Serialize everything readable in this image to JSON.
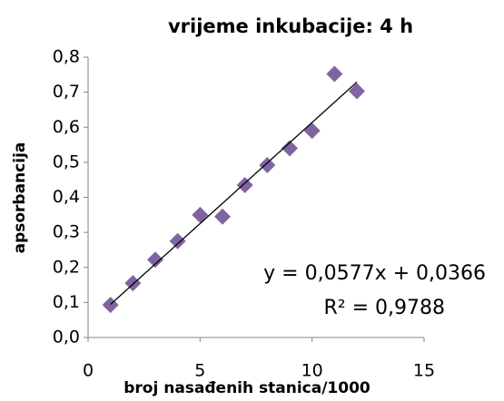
{
  "chart_data": {
    "type": "scatter",
    "title": "vrijeme inkubacije: 4 h",
    "x_label": "broj nasađenih stanica/1000",
    "y_label": "apsorbancija",
    "series": [
      {
        "name": "apsorbancija",
        "color": "#8064a2",
        "x": [
          1,
          2,
          3,
          4,
          5,
          6,
          7,
          8,
          9,
          10,
          11,
          12
        ],
        "values": [
          0.093,
          0.155,
          0.222,
          0.275,
          0.35,
          0.345,
          0.435,
          0.492,
          0.54,
          0.59,
          0.752,
          0.703
        ]
      }
    ],
    "trendline": {
      "slope": 0.0577,
      "intercept": 0.0366,
      "x_range": [
        1,
        12
      ],
      "color": "#000000",
      "equation": "y = 0,0577x + 0,0366",
      "r_squared": "R² = 0,9788"
    },
    "xlim": [
      0,
      15
    ],
    "xticks": [
      0,
      5,
      10,
      15
    ],
    "ylim": [
      0,
      0.8
    ],
    "yticks": [
      {
        "value": 0,
        "label": "0,0"
      },
      {
        "value": 0.1,
        "label": "0,1"
      },
      {
        "value": 0.2,
        "label": "0,2"
      },
      {
        "value": 0.3,
        "label": "0,3"
      },
      {
        "value": 0.4,
        "label": "0,4"
      },
      {
        "value": 0.5,
        "label": "0,5"
      },
      {
        "value": 0.6,
        "label": "0,6"
      },
      {
        "value": 0.7,
        "label": "0,7"
      },
      {
        "value": 0.8,
        "label": "0,8"
      }
    ],
    "grid": false
  }
}
